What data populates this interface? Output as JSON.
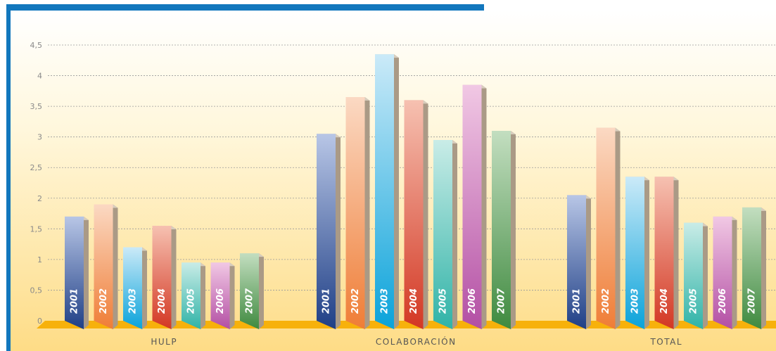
{
  "chart_data": {
    "type": "bar",
    "categories": [
      "HULP",
      "COLABORACIÓN",
      "TOTAL"
    ],
    "series": [
      {
        "name": "2001",
        "values": [
          1.7,
          3.05,
          2.05
        ]
      },
      {
        "name": "2002",
        "values": [
          1.9,
          3.65,
          3.15
        ]
      },
      {
        "name": "2003",
        "values": [
          1.2,
          4.35,
          2.35
        ]
      },
      {
        "name": "2004",
        "values": [
          1.55,
          3.6,
          2.35
        ]
      },
      {
        "name": "2005",
        "values": [
          0.95,
          2.95,
          1.6
        ]
      },
      {
        "name": "2006",
        "values": [
          0.95,
          3.85,
          1.7
        ]
      },
      {
        "name": "2007",
        "values": [
          1.1,
          3.1,
          1.85
        ]
      }
    ],
    "y_ticks": [
      "0",
      "0,5",
      "1",
      "1,5",
      "2",
      "2,5",
      "3",
      "3,5",
      "4",
      "4,5"
    ],
    "ylim": [
      0,
      4.5
    ],
    "grid": true,
    "title": "",
    "xlabel": "",
    "ylabel": "",
    "colors": {
      "2001": [
        "#b8c6e6",
        "#1f3f86"
      ],
      "2002": [
        "#fbd9c3",
        "#ef7d36"
      ],
      "2003": [
        "#cbeaf8",
        "#0aa3da"
      ],
      "2004": [
        "#f6c1b1",
        "#d33723"
      ],
      "2005": [
        "#c9ece7",
        "#2fb3a7"
      ],
      "2006": [
        "#f1c8e4",
        "#b34fa4"
      ],
      "2007": [
        "#c3dec0",
        "#3f8a3f"
      ],
      "frame_blue": "#1277bd",
      "floor": "#f7b10b"
    }
  }
}
